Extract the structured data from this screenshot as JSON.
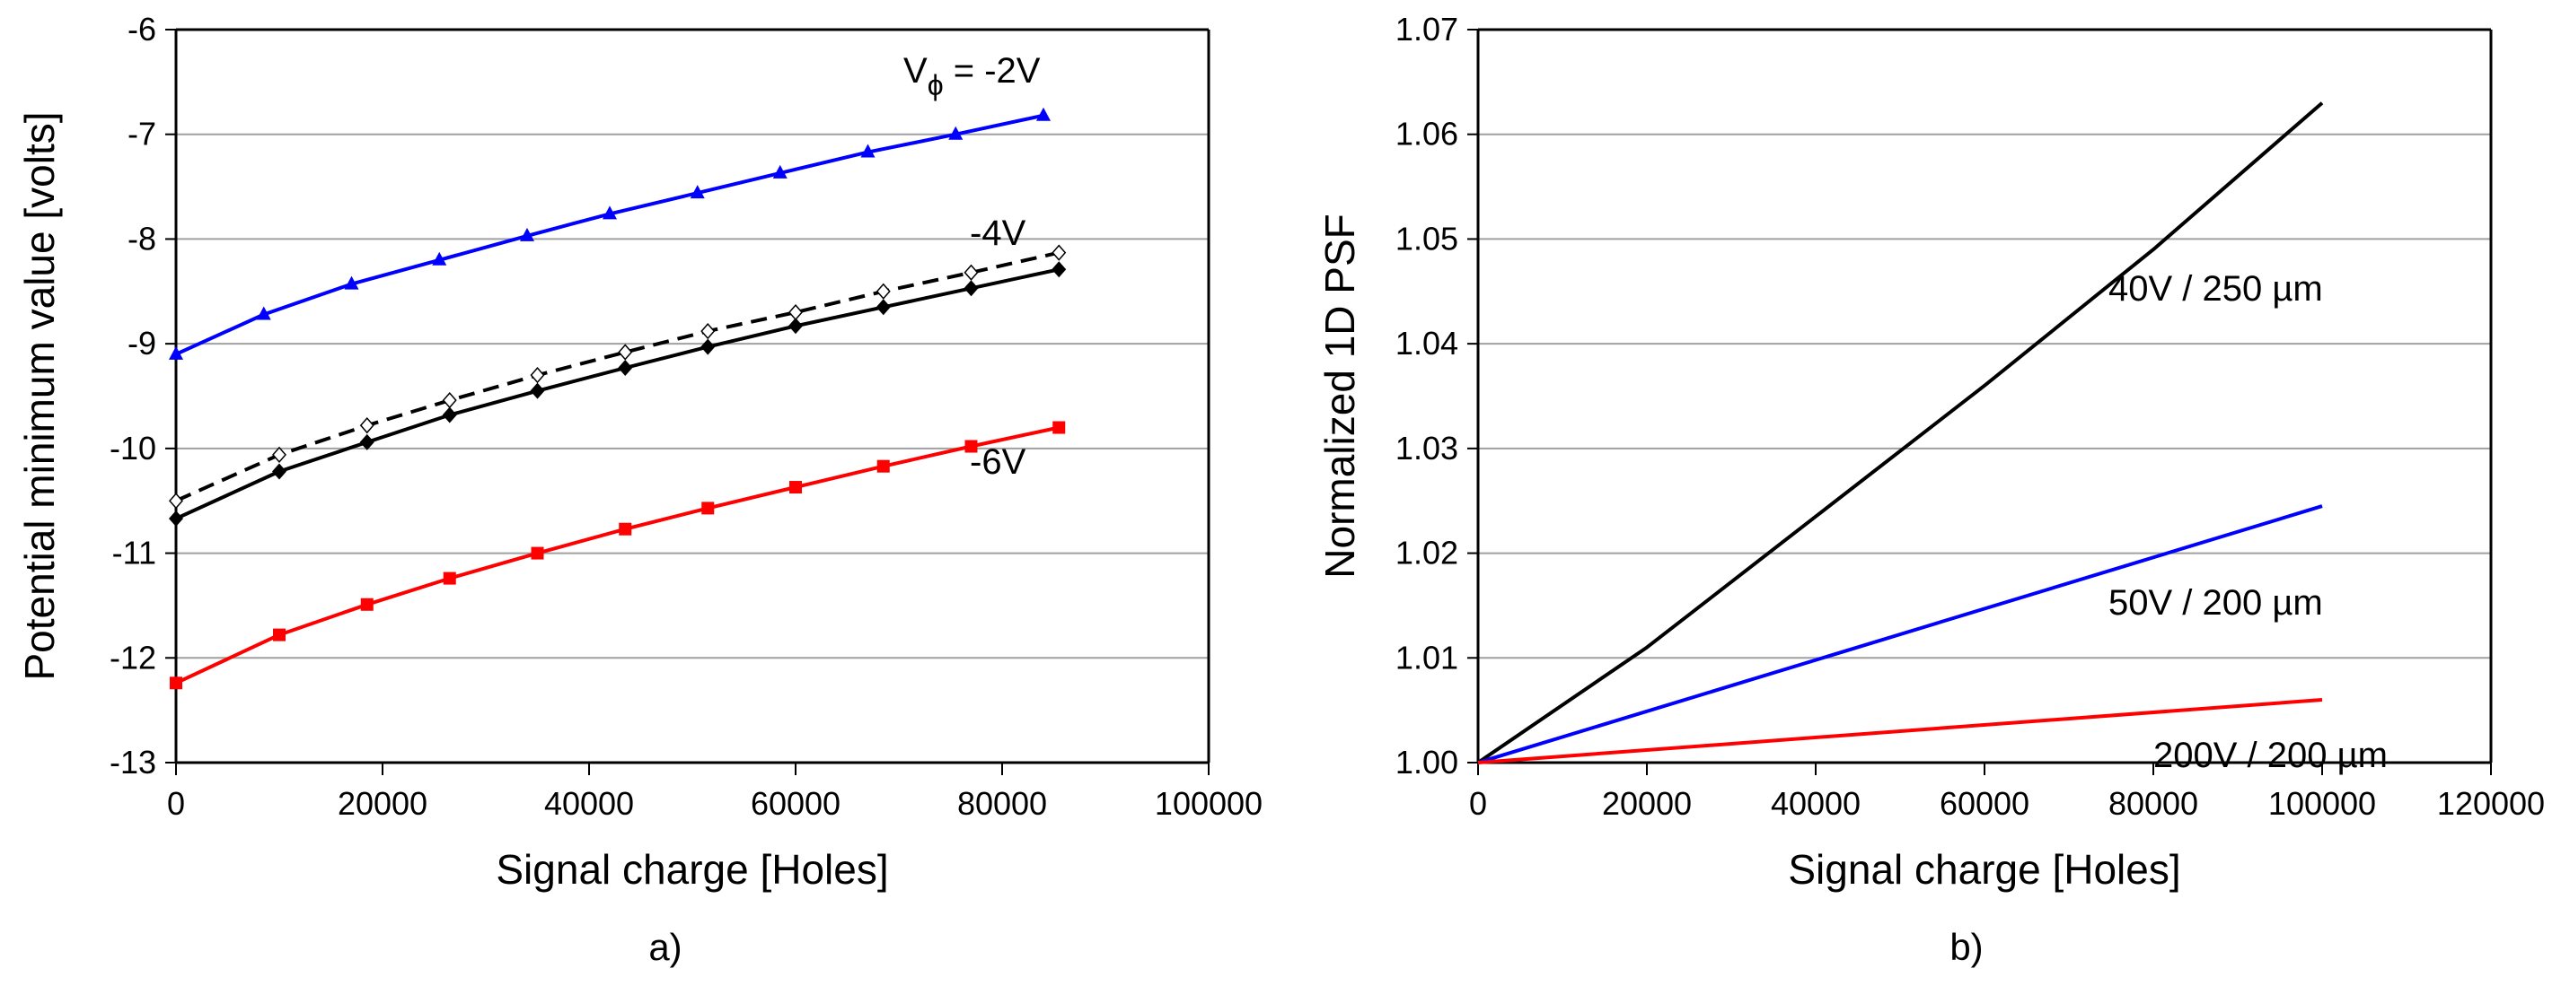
{
  "chart_data": [
    {
      "type": "line",
      "panel_label": "a)",
      "xlabel": "Signal charge  [Holes]",
      "ylabel": "Potential minimum value [volts]",
      "xlim": [
        0,
        100000
      ],
      "ylim": [
        -13,
        -6
      ],
      "xticks": [
        0,
        20000,
        40000,
        60000,
        80000,
        100000
      ],
      "yticks": [
        -6,
        -7,
        -8,
        -9,
        -10,
        -11,
        -12,
        -13
      ],
      "grid": "horizontal",
      "annotations": [
        {
          "text": "V",
          "sub": "ϕ",
          "rest": " = -2V",
          "series": 0
        },
        {
          "text": "-4V",
          "series": 1
        },
        {
          "text": "-6V",
          "series": 3
        }
      ],
      "series": [
        {
          "color": "#0000ff",
          "marker": "triangle",
          "dash": false,
          "x": [
            0,
            8500,
            17000,
            25500,
            34000,
            42000,
            50500,
            58500,
            67000,
            75500,
            84000
          ],
          "y": [
            -9.1,
            -8.72,
            -8.43,
            -8.2,
            -7.97,
            -7.76,
            -7.56,
            -7.37,
            -7.17,
            -7.0,
            -6.82
          ]
        },
        {
          "color": "#000000",
          "marker": "diamond",
          "dash": false,
          "x": [
            0,
            10000,
            18500,
            26500,
            35000,
            43500,
            51500,
            60000,
            68500,
            77000,
            85500
          ],
          "y": [
            -10.67,
            -10.22,
            -9.94,
            -9.68,
            -9.45,
            -9.23,
            -9.03,
            -8.83,
            -8.65,
            -8.47,
            -8.29
          ]
        },
        {
          "color": "#000000",
          "marker": "open-diamond",
          "dash": true,
          "x": [
            0,
            10000,
            18500,
            26500,
            35000,
            43500,
            51500,
            60000,
            68500,
            77000,
            85500
          ],
          "y": [
            -10.5,
            -10.06,
            -9.78,
            -9.54,
            -9.3,
            -9.08,
            -8.88,
            -8.7,
            -8.5,
            -8.32,
            -8.13
          ]
        },
        {
          "color": "#ff0000",
          "marker": "square",
          "dash": false,
          "x": [
            0,
            10000,
            18500,
            26500,
            35000,
            43500,
            51500,
            60000,
            68500,
            77000,
            85500
          ],
          "y": [
            -12.24,
            -11.78,
            -11.49,
            -11.24,
            -11.0,
            -10.77,
            -10.57,
            -10.37,
            -10.17,
            -9.98,
            -9.8
          ]
        }
      ]
    },
    {
      "type": "line",
      "panel_label": "b)",
      "xlabel": "Signal charge [Holes]",
      "ylabel": "Normalized 1D PSF",
      "xlim": [
        0,
        120000
      ],
      "ylim": [
        1.0,
        1.07
      ],
      "xticks": [
        0,
        20000,
        40000,
        60000,
        80000,
        100000,
        120000
      ],
      "yticks": [
        "1.07",
        "1.06",
        "1.05",
        "1.04",
        "1.03",
        "1.02",
        "1.01",
        "1.00"
      ],
      "grid": "horizontal",
      "series": [
        {
          "name": "40V  / 250 µm",
          "color": "#000000",
          "x": [
            0,
            20000,
            40000,
            60000,
            80000,
            100000
          ],
          "y": [
            1.0,
            1.011,
            1.0235,
            1.036,
            1.049,
            1.063
          ]
        },
        {
          "name": "50V  / 200 µm",
          "color": "#0000ff",
          "x": [
            0,
            100000
          ],
          "y": [
            1.0,
            1.0245
          ]
        },
        {
          "name": "200V  / 200 µm",
          "color": "#ff0000",
          "x": [
            0,
            100000
          ],
          "y": [
            1.0,
            1.006
          ]
        }
      ]
    }
  ]
}
